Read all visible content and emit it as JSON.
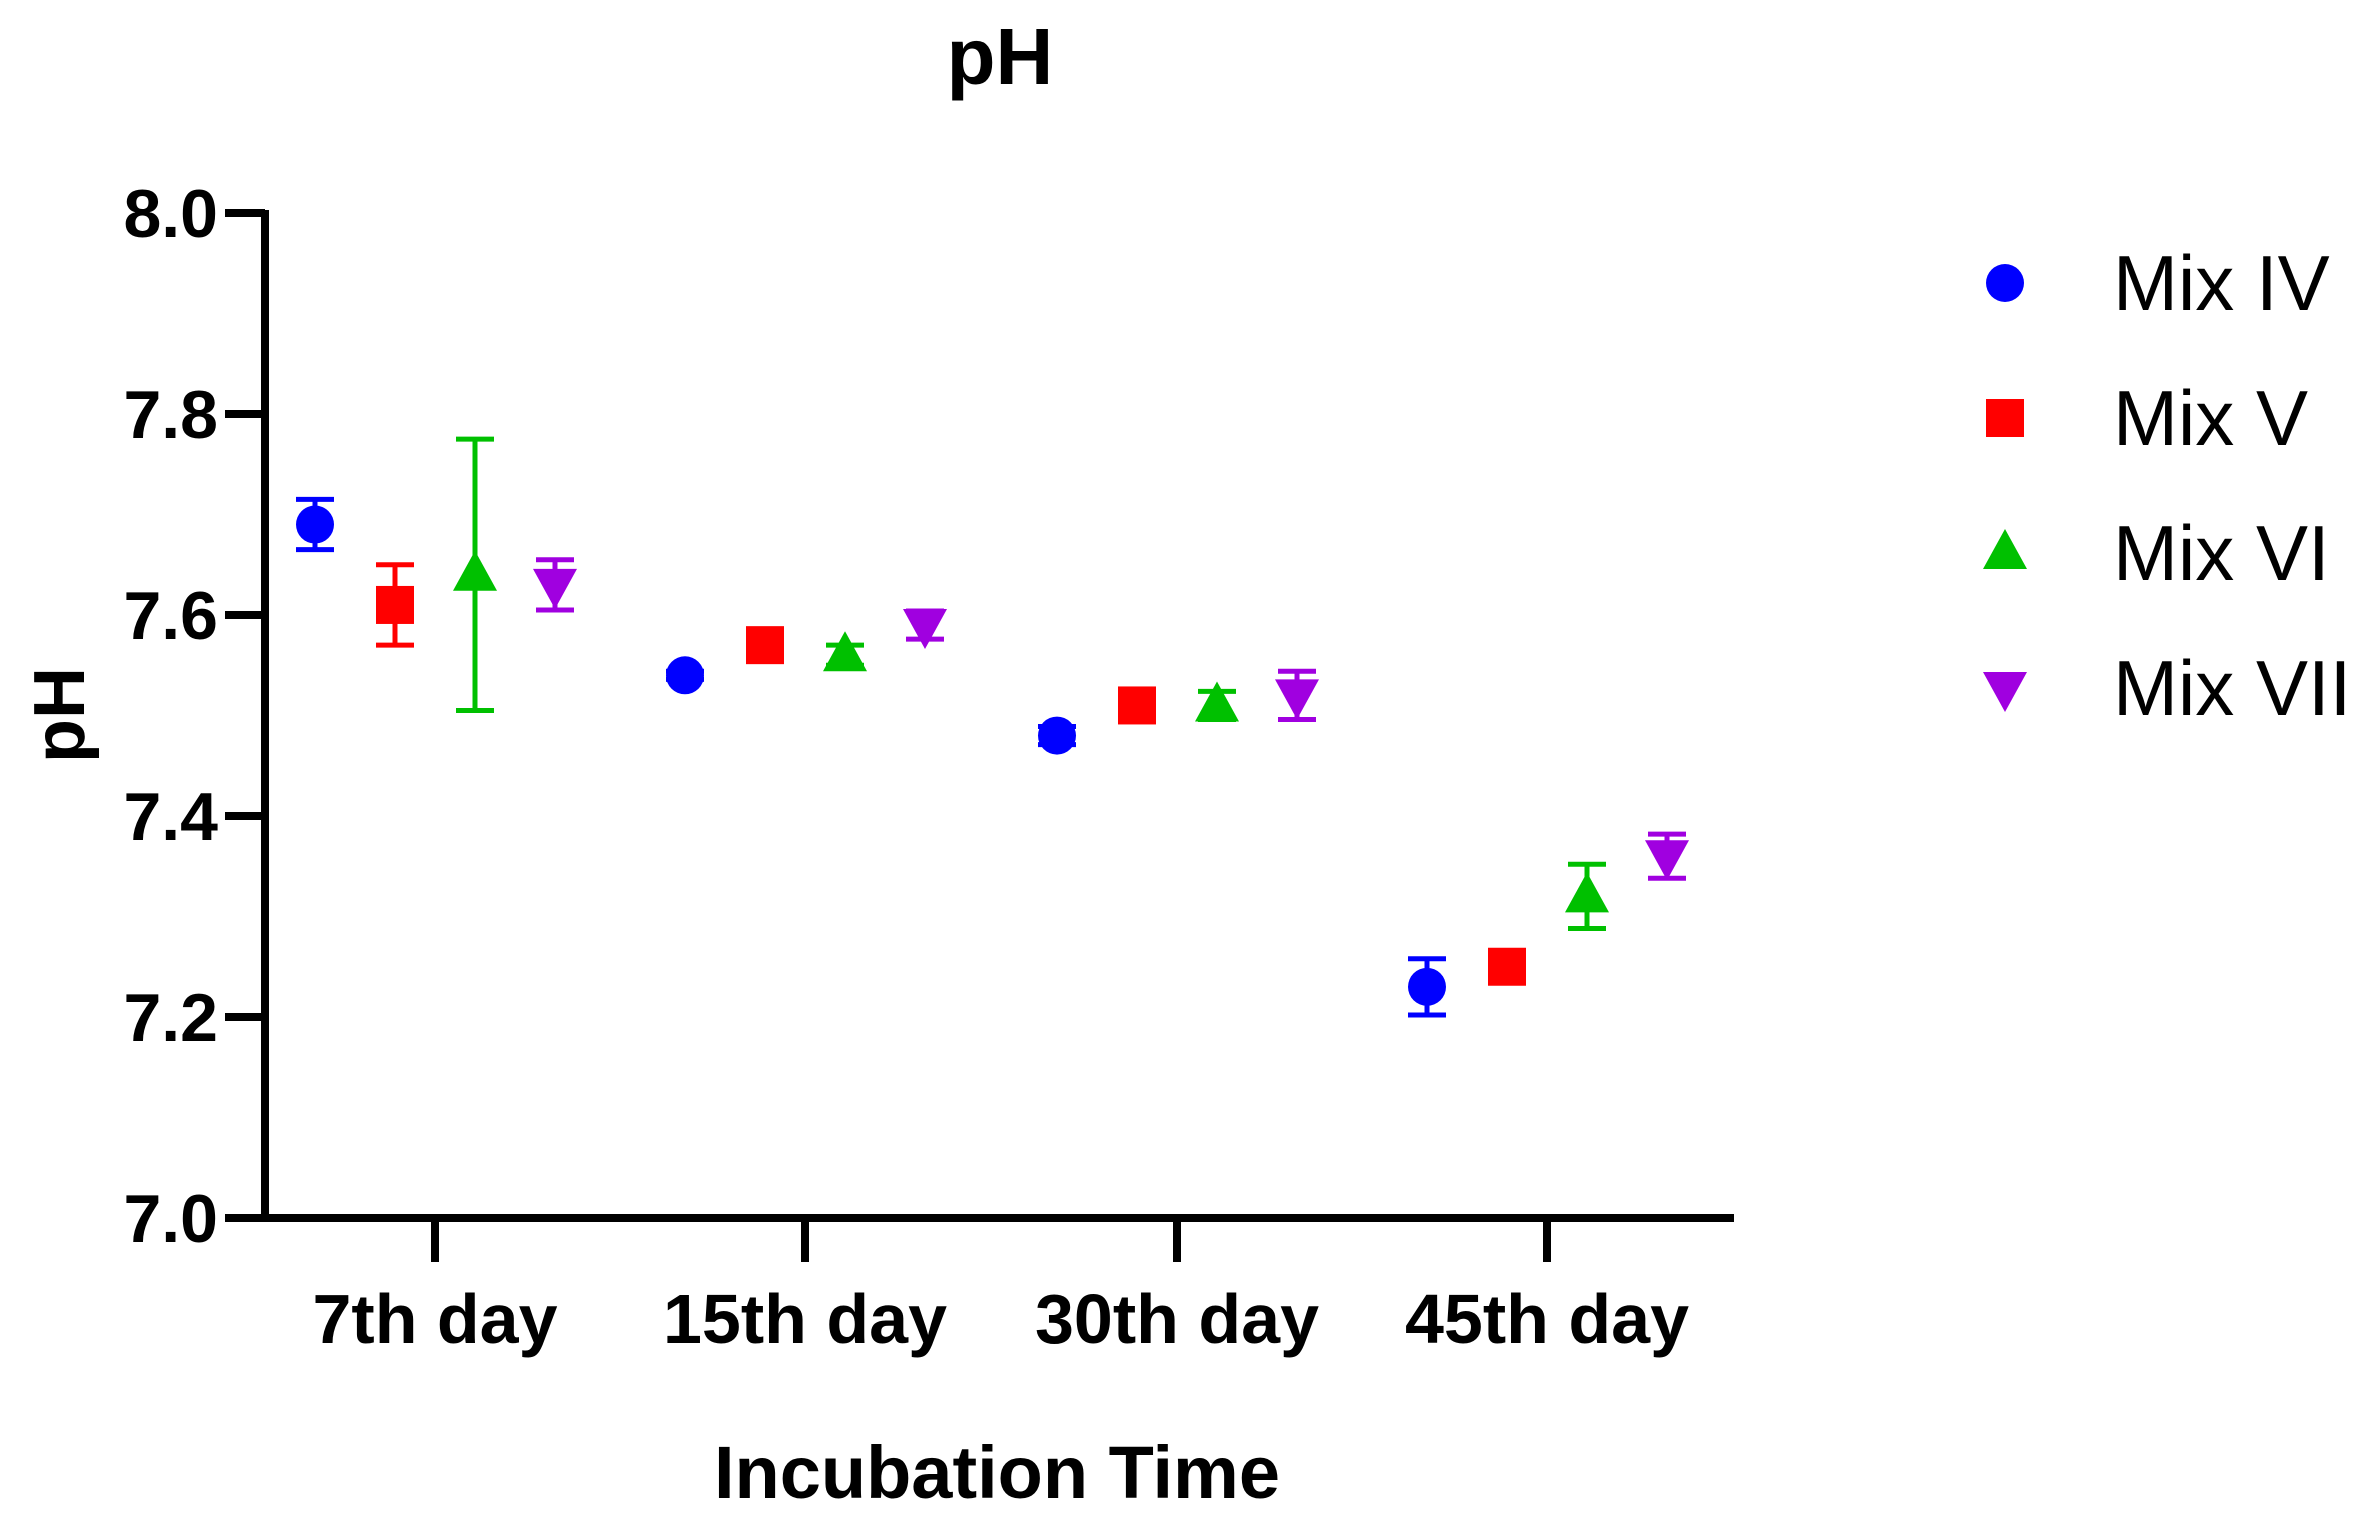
{
  "chart_data": {
    "type": "scatter",
    "title": "pH",
    "xlabel": "Incubation Time",
    "ylabel": "pH",
    "categories": [
      "7th day",
      "15th day",
      "30th day",
      "45th day"
    ],
    "ylim": [
      7.0,
      8.0
    ],
    "yticks": [
      "7.0",
      "7.2",
      "7.4",
      "7.6",
      "7.8",
      "8.0"
    ],
    "grid": false,
    "legend_position": "right",
    "series": [
      {
        "name": "Mix IV",
        "marker": "circle",
        "color": "#0000ff",
        "values": [
          7.69,
          7.54,
          7.48,
          7.23
        ],
        "errors": [
          0.025,
          0.004,
          0.009,
          0.028
        ]
      },
      {
        "name": "Mix V",
        "marker": "square",
        "color": "#ff0000",
        "values": [
          7.61,
          7.57,
          7.51,
          7.25
        ],
        "errors": [
          0.04,
          0.004,
          0.004,
          0.004
        ]
      },
      {
        "name": "Mix VI",
        "marker": "triangle-up",
        "color": "#00c000",
        "values": [
          7.64,
          7.56,
          7.51,
          7.32
        ],
        "errors": [
          0.135,
          0.01,
          0.014,
          0.032
        ]
      },
      {
        "name": "Mix VII",
        "marker": "triangle-down",
        "color": "#a000e0",
        "values": [
          7.63,
          7.59,
          7.52,
          7.36
        ],
        "errors": [
          0.025,
          0.014,
          0.024,
          0.022
        ]
      }
    ]
  }
}
